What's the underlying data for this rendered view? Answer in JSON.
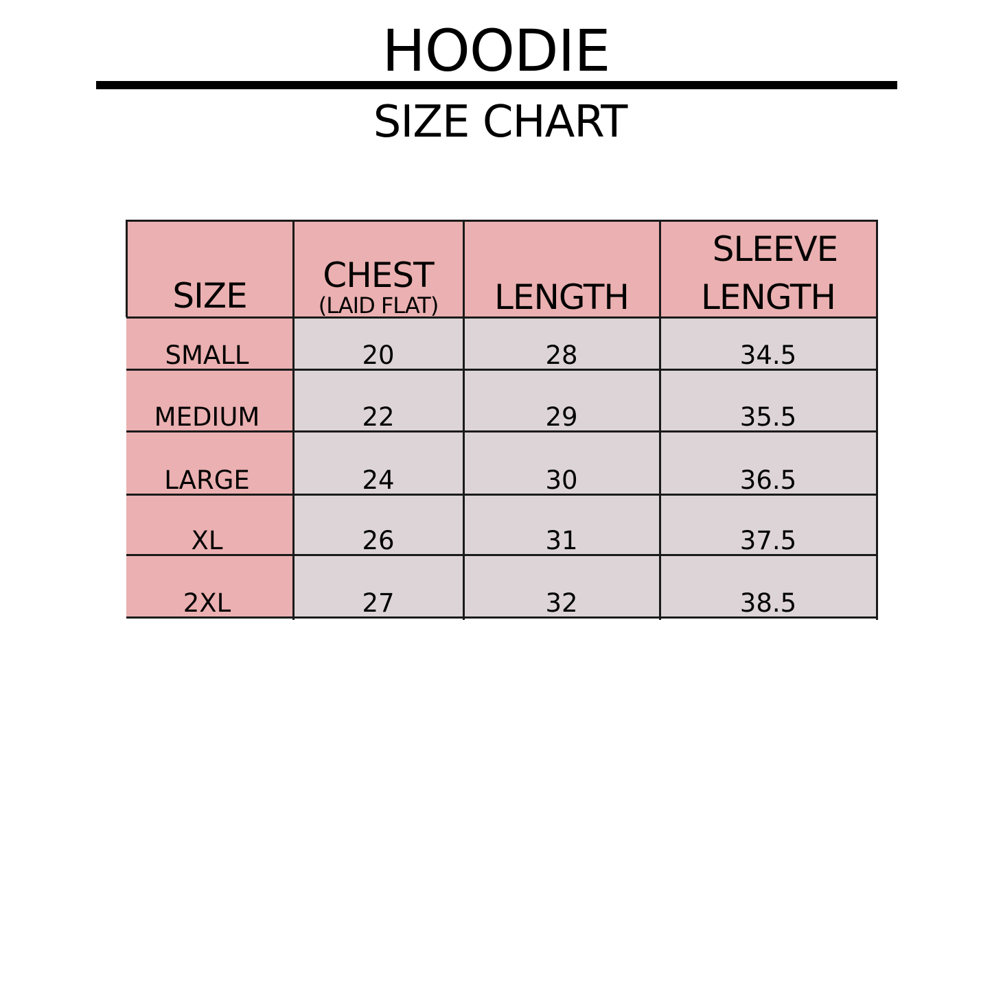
{
  "title": "HOODIE",
  "subtitle": "SIZE CHART",
  "colors": {
    "header_bg": "#ebb0b1",
    "size_col_bg": "#ebb0b1",
    "value_bg": "#dcd4d6",
    "border": "#1a1a1a"
  },
  "table": {
    "headers": [
      {
        "line1": "SIZE"
      },
      {
        "line1": "CHEST",
        "line2": "(LAID FLAT)"
      },
      {
        "line1": "LENGTH"
      },
      {
        "line1": "SLEEVE",
        "line2": "LENGTH"
      }
    ],
    "rows": [
      {
        "size": "SMALL",
        "chest": "20",
        "length": "28",
        "sleeve": "34.5"
      },
      {
        "size": "MEDIUM",
        "chest": "22",
        "length": "29",
        "sleeve": "35.5"
      },
      {
        "size": "LARGE",
        "chest": "24",
        "length": "30",
        "sleeve": "36.5"
      },
      {
        "size": "XL",
        "chest": "26",
        "length": "31",
        "sleeve": "37.5"
      },
      {
        "size": "2XL",
        "chest": "27",
        "length": "32",
        "sleeve": "38.5"
      }
    ]
  }
}
